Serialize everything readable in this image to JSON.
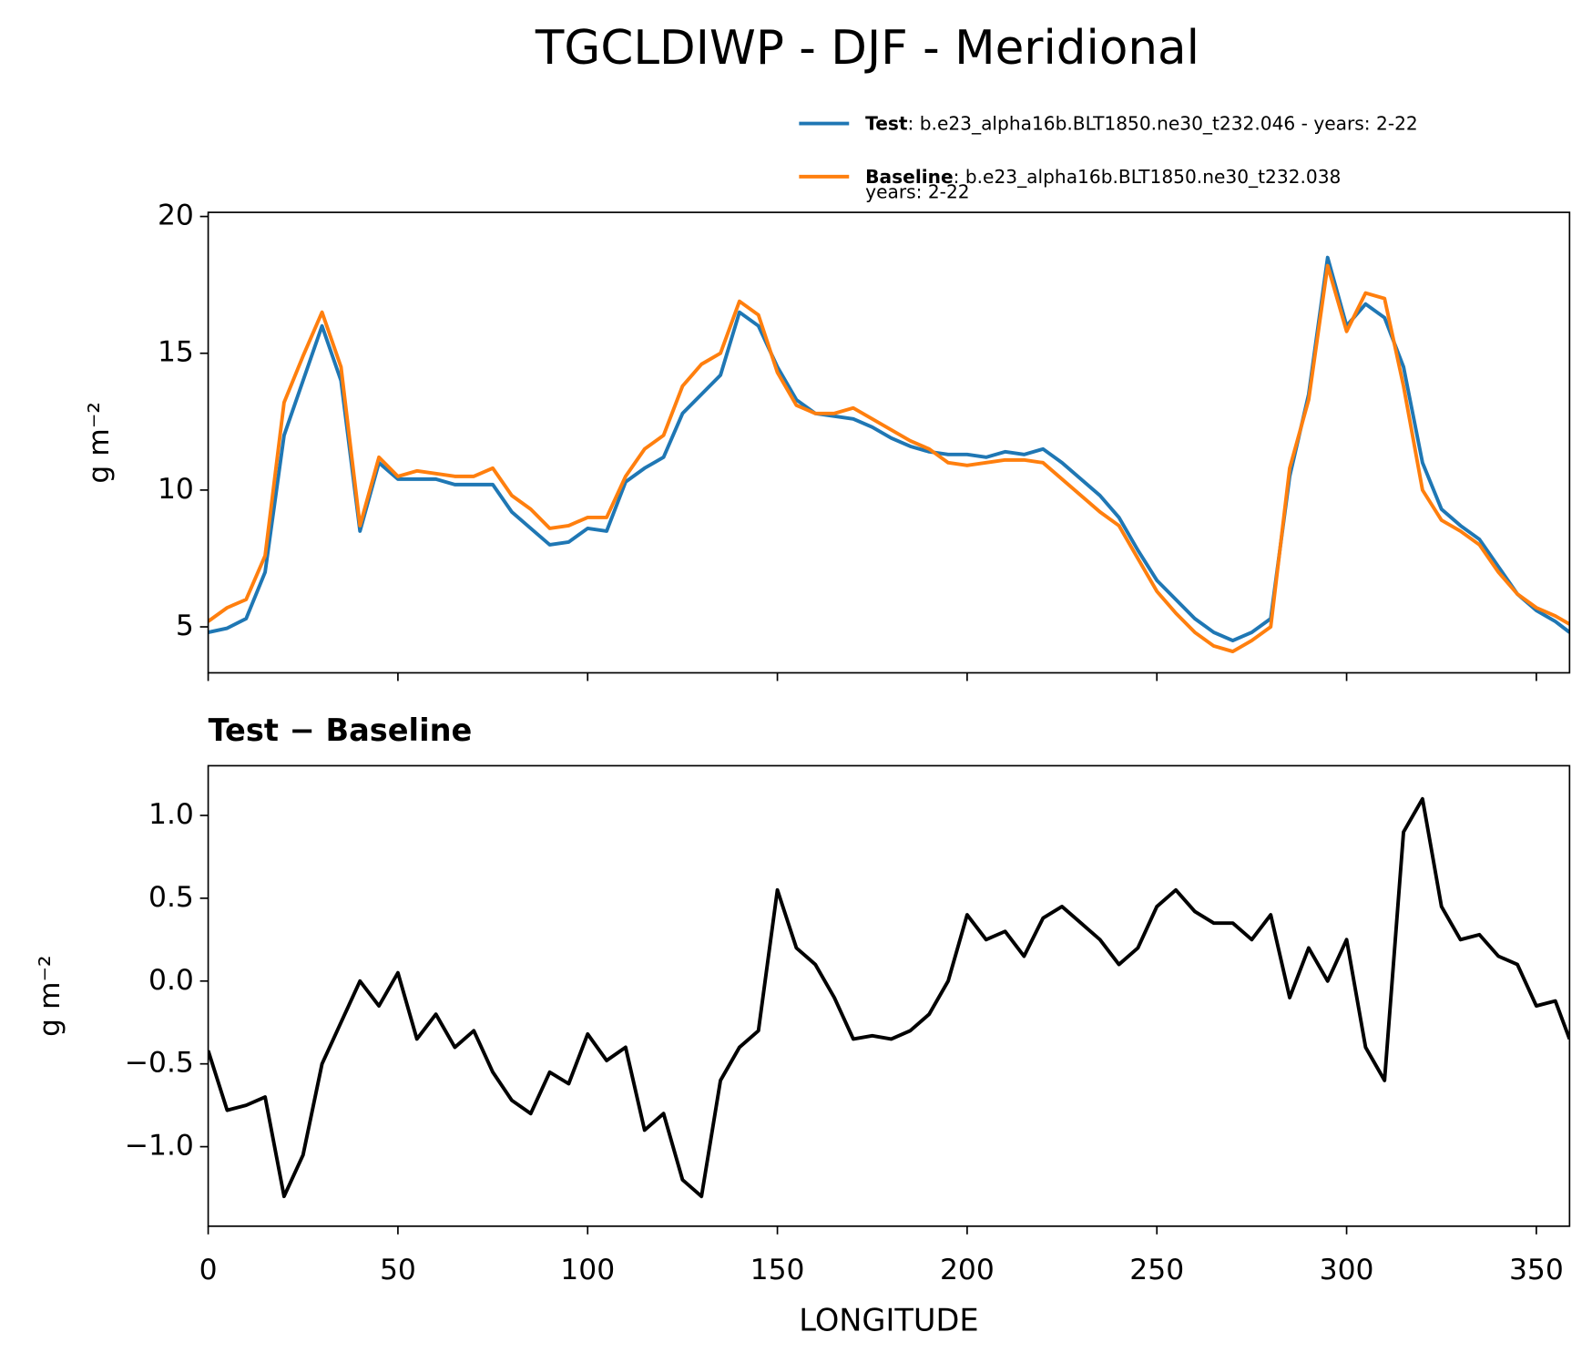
{
  "chart_data": [
    {
      "type": "line",
      "title": "TGCLDIWP - DJF - Meridional",
      "ylabel": "g m⁻²",
      "x": [
        0,
        5,
        10,
        15,
        20,
        25,
        30,
        35,
        40,
        45,
        50,
        55,
        60,
        65,
        70,
        75,
        80,
        85,
        90,
        95,
        100,
        105,
        110,
        115,
        120,
        125,
        130,
        135,
        140,
        145,
        150,
        155,
        160,
        165,
        170,
        175,
        180,
        185,
        190,
        195,
        200,
        205,
        210,
        215,
        220,
        225,
        230,
        235,
        240,
        245,
        250,
        255,
        260,
        265,
        270,
        275,
        280,
        285,
        290,
        295,
        300,
        305,
        310,
        315,
        320,
        325,
        330,
        335,
        340,
        345,
        350,
        355,
        358.75
      ],
      "series": [
        {
          "name": "Test",
          "description": [
            ": b.e23_alpha16b.BLT1850.ne30_t232.046 - years: 2-22"
          ],
          "color": "#1f77b4",
          "values": [
            4.8,
            4.95,
            5.3,
            7.0,
            12.0,
            14.0,
            16.0,
            14.0,
            8.5,
            11.0,
            10.4,
            10.4,
            10.4,
            10.2,
            10.2,
            10.2,
            9.2,
            8.6,
            8.0,
            8.1,
            8.6,
            8.5,
            10.3,
            10.8,
            11.2,
            12.8,
            13.5,
            14.2,
            16.5,
            16.0,
            14.5,
            13.3,
            12.8,
            12.7,
            12.6,
            12.3,
            11.9,
            11.6,
            11.4,
            11.3,
            11.3,
            11.2,
            11.4,
            11.3,
            11.5,
            11.0,
            10.4,
            9.8,
            9.0,
            7.8,
            6.7,
            6.0,
            5.3,
            4.8,
            4.5,
            4.8,
            5.3,
            10.5,
            13.5,
            18.5,
            16.0,
            16.8,
            16.3,
            14.5,
            11.0,
            9.3,
            8.7,
            8.2,
            7.2,
            6.2,
            5.6,
            5.2,
            4.8
          ]
        },
        {
          "name": "Baseline",
          "description": [
            ": b.e23_alpha16b.BLT1850.ne30_t232.038",
            "years: 2-22"
          ],
          "color": "#ff7f0e",
          "values": [
            5.2,
            5.7,
            6.0,
            7.6,
            13.2,
            14.9,
            16.5,
            14.5,
            8.7,
            11.2,
            10.5,
            10.7,
            10.6,
            10.5,
            10.5,
            10.8,
            9.8,
            9.3,
            8.6,
            8.7,
            9.0,
            9.0,
            10.5,
            11.5,
            12.0,
            13.8,
            14.6,
            15.0,
            16.9,
            16.4,
            14.3,
            13.1,
            12.8,
            12.8,
            13.0,
            12.6,
            12.2,
            11.8,
            11.5,
            11.0,
            10.9,
            11.0,
            11.1,
            11.1,
            11.0,
            10.4,
            9.8,
            9.2,
            8.7,
            7.5,
            6.3,
            5.5,
            4.8,
            4.3,
            4.1,
            4.5,
            5.0,
            10.8,
            13.3,
            18.2,
            15.8,
            17.2,
            17.0,
            13.8,
            10.0,
            8.9,
            8.5,
            8.0,
            7.0,
            6.2,
            5.7,
            5.4,
            5.1
          ]
        }
      ],
      "xlim": [
        0,
        358.75
      ],
      "xticks": [
        0,
        50,
        100,
        150,
        200,
        250,
        300,
        350
      ],
      "ylim": [
        3.32,
        20.15
      ],
      "yticks": [
        5,
        10,
        15,
        20
      ]
    },
    {
      "type": "line",
      "title": "Test − Baseline",
      "ylabel": "g m⁻²",
      "xlabel": "LONGITUDE",
      "color": "#000000",
      "x": [
        0,
        5,
        10,
        15,
        20,
        25,
        30,
        35,
        40,
        45,
        50,
        55,
        60,
        65,
        70,
        75,
        80,
        85,
        90,
        95,
        100,
        105,
        110,
        115,
        120,
        125,
        130,
        135,
        140,
        145,
        150,
        155,
        160,
        165,
        170,
        175,
        180,
        185,
        190,
        195,
        200,
        205,
        210,
        215,
        220,
        225,
        230,
        235,
        240,
        245,
        250,
        255,
        260,
        265,
        270,
        275,
        280,
        285,
        290,
        295,
        300,
        305,
        310,
        315,
        320,
        325,
        330,
        335,
        340,
        345,
        350,
        355,
        358.75
      ],
      "values": [
        -0.42,
        -0.78,
        -0.75,
        -0.7,
        -1.3,
        -1.05,
        -0.5,
        -0.25,
        0.0,
        -0.15,
        0.05,
        -0.35,
        -0.2,
        -0.4,
        -0.3,
        -0.55,
        -0.72,
        -0.8,
        -0.55,
        -0.62,
        -0.32,
        -0.48,
        -0.4,
        -0.9,
        -0.8,
        -1.2,
        -1.3,
        -0.6,
        -0.4,
        -0.3,
        0.55,
        0.2,
        0.1,
        -0.1,
        -0.35,
        -0.33,
        -0.35,
        -0.3,
        -0.2,
        0.0,
        0.4,
        0.25,
        0.3,
        0.15,
        0.38,
        0.45,
        0.35,
        0.25,
        0.1,
        0.2,
        0.45,
        0.55,
        0.42,
        0.35,
        0.35,
        0.25,
        0.4,
        -0.1,
        0.2,
        0.0,
        0.25,
        -0.4,
        -0.6,
        0.9,
        1.1,
        0.45,
        0.25,
        0.28,
        0.15,
        0.1,
        -0.15,
        -0.12,
        -0.35
      ],
      "xlim": [
        0,
        358.75
      ],
      "xticks": [
        0,
        50,
        100,
        150,
        200,
        250,
        300,
        350
      ],
      "ylim": [
        -1.48,
        1.3
      ],
      "yticks": [
        {
          "value": -1.0,
          "label": "−1.0"
        },
        {
          "value": -0.5,
          "label": "−0.5"
        },
        {
          "value": 0.0,
          "label": "0.0"
        },
        0.5,
        {
          "value": 1.0,
          "label": "1.0"
        }
      ]
    }
  ]
}
